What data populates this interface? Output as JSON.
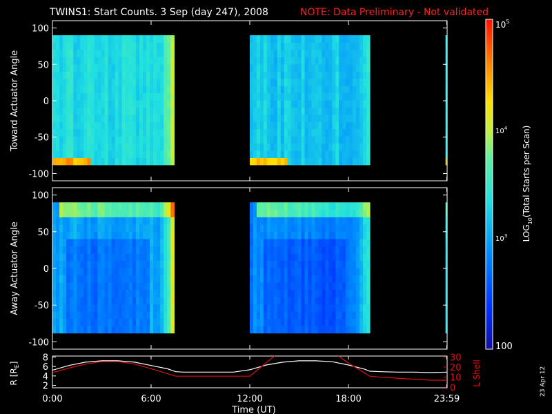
{
  "title": "TWINS1: Start Counts.  3 Sep (day 247), 2008",
  "note": "NOTE: Data Preliminary - Not validated",
  "footer_date": "23 Apr 12",
  "colors": {
    "background": "#000000",
    "foreground": "#ffffff",
    "note": "#ff2020",
    "lshell": "#e01010",
    "colorscale": [
      "#1010a0",
      "#0030ff",
      "#00a0ff",
      "#20e0e0",
      "#60f0a0",
      "#c0f040",
      "#ffe000",
      "#ff8000",
      "#ff1000"
    ]
  },
  "chart_data": [
    {
      "type": "heatmap",
      "name": "toward",
      "ylabel": "Toward Actuator Angle",
      "ylim": [
        -110,
        110
      ],
      "yticks": [
        "100",
        "50",
        "0",
        "-50",
        "-100"
      ],
      "data_ylim": [
        -88,
        90
      ],
      "segments": [
        {
          "start_hr": 0.0,
          "end_hr": 7.4,
          "base_log": 3.35,
          "edge_log": 4.3,
          "feature": "low-angle high counts"
        },
        {
          "start_hr": 12.0,
          "end_hr": 19.3,
          "base_log": 3.2,
          "edge_log": 3.6,
          "feature": "low-angle high counts"
        },
        {
          "start_hr": 23.9,
          "end_hr": 24.0,
          "base_log": 3.4,
          "edge_log": 4.0,
          "feature": "low-angle high counts"
        }
      ]
    },
    {
      "type": "heatmap",
      "name": "away",
      "ylabel": "Away Actuator Angle",
      "ylim": [
        -110,
        110
      ],
      "yticks": [
        "100",
        "50",
        "0",
        "-50",
        "-100"
      ],
      "data_ylim": [
        -88,
        90
      ],
      "segments": [
        {
          "start_hr": 0.0,
          "end_hr": 7.4,
          "base_log": 3.0,
          "edge_log": 4.3,
          "feature": "high-angle band"
        },
        {
          "start_hr": 12.0,
          "end_hr": 19.3,
          "base_log": 2.85,
          "edge_log": 3.6,
          "feature": "high-angle band"
        },
        {
          "start_hr": 23.9,
          "end_hr": 24.0,
          "base_log": 3.4,
          "edge_log": 4.1,
          "feature": "high-angle band"
        }
      ]
    },
    {
      "type": "colorbar",
      "label": "LOG10(Total Starts per Scan)",
      "scale": "log",
      "range": [
        100,
        100000
      ],
      "ticks": [
        "10^5",
        "10^4",
        "10^3",
        "100"
      ]
    },
    {
      "type": "line",
      "xlabel": "Time (UT)",
      "xlim": [
        0,
        24
      ],
      "xticks": [
        {
          "hr": 0,
          "label": "0:00"
        },
        {
          "hr": 6,
          "label": "6:00"
        },
        {
          "hr": 12,
          "label": "12:00"
        },
        {
          "hr": 18,
          "label": "18:00"
        },
        {
          "hr": 23.98,
          "label": "23:59"
        }
      ],
      "y_left_label": "R [RE]",
      "y_left_ticks": [
        "8",
        "6",
        "4",
        "2"
      ],
      "y_left_lim": [
        1.5,
        8.2
      ],
      "y_right_label": "L Shell",
      "y_right_ticks": [
        "30",
        "20",
        "10",
        "0"
      ],
      "y_right_lim": [
        -0.5,
        31
      ],
      "series": [
        {
          "name": "R",
          "axis": "left",
          "color": "#ffffff",
          "x": [
            0,
            1,
            2,
            3,
            4,
            5,
            6,
            7,
            7.5,
            8,
            9,
            10,
            11,
            12,
            13,
            14,
            15,
            16,
            17,
            18,
            19,
            19.3,
            20,
            21,
            22,
            23,
            24
          ],
          "y": [
            5.2,
            6.2,
            6.9,
            7.2,
            7.2,
            6.9,
            6.2,
            5.5,
            4.9,
            4.8,
            4.8,
            4.8,
            4.8,
            5.3,
            6.3,
            6.9,
            7.2,
            7.2,
            7.0,
            6.3,
            5.4,
            5.0,
            4.9,
            4.8,
            4.8,
            4.7,
            4.8
          ]
        },
        {
          "name": "L Shell",
          "axis": "right",
          "color": "#e01010",
          "x": [
            0,
            1,
            2,
            3,
            4,
            5,
            6,
            7,
            7.5,
            8,
            9,
            10,
            11,
            12,
            12.6,
            13.2,
            13.5
          ],
          "y": [
            14.5,
            19,
            23,
            25.5,
            25.5,
            23,
            18.5,
            13.5,
            11,
            11,
            11,
            11,
            11,
            11,
            19,
            27,
            31
          ]
        },
        {
          "name": "L Shell",
          "axis": "right",
          "color": "#e01010",
          "x": [
            17.4,
            18,
            18.5,
            19,
            19.3,
            20,
            21,
            22,
            23,
            24
          ],
          "y": [
            31,
            24,
            19,
            14,
            11,
            10,
            9,
            8,
            7,
            7
          ]
        }
      ]
    }
  ]
}
